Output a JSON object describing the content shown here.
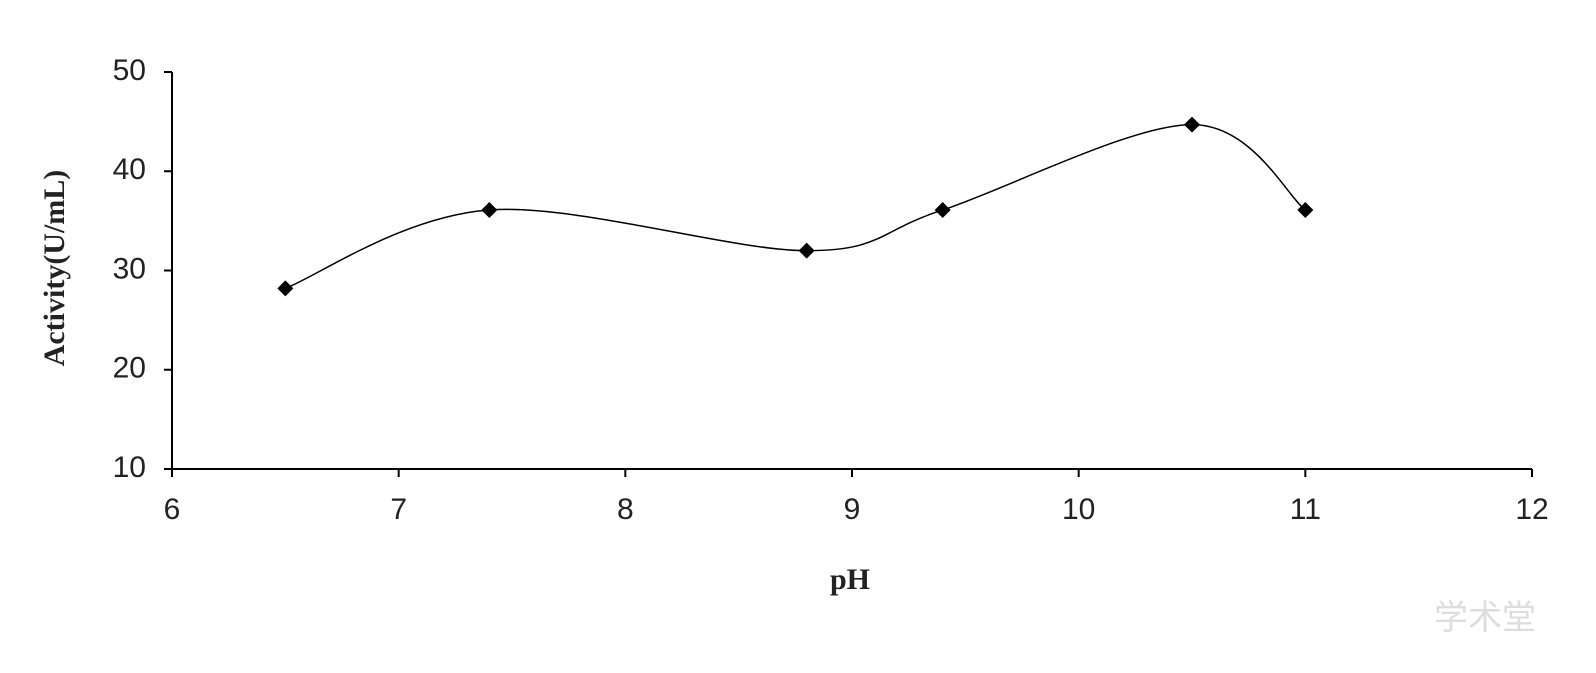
{
  "chart_data": {
    "type": "line",
    "x_label": "pH",
    "y_label": "Activity(U/mL)",
    "x": [
      6.5,
      7.4,
      8.8,
      9.4,
      10.5,
      11
    ],
    "series": [
      {
        "name": "Activity",
        "color": "#000000",
        "values": [
          28.2,
          36.1,
          32.0,
          36.1,
          44.7,
          36.1
        ]
      }
    ],
    "xlim": [
      6,
      12
    ],
    "xticks": [
      6,
      7,
      8,
      9,
      10,
      11,
      12
    ],
    "ylim": [
      10,
      50
    ],
    "yticks": [
      10,
      20,
      30,
      40,
      50
    ],
    "grid": false,
    "smooth": true,
    "marker": "diamond",
    "watermark": "学术堂"
  }
}
